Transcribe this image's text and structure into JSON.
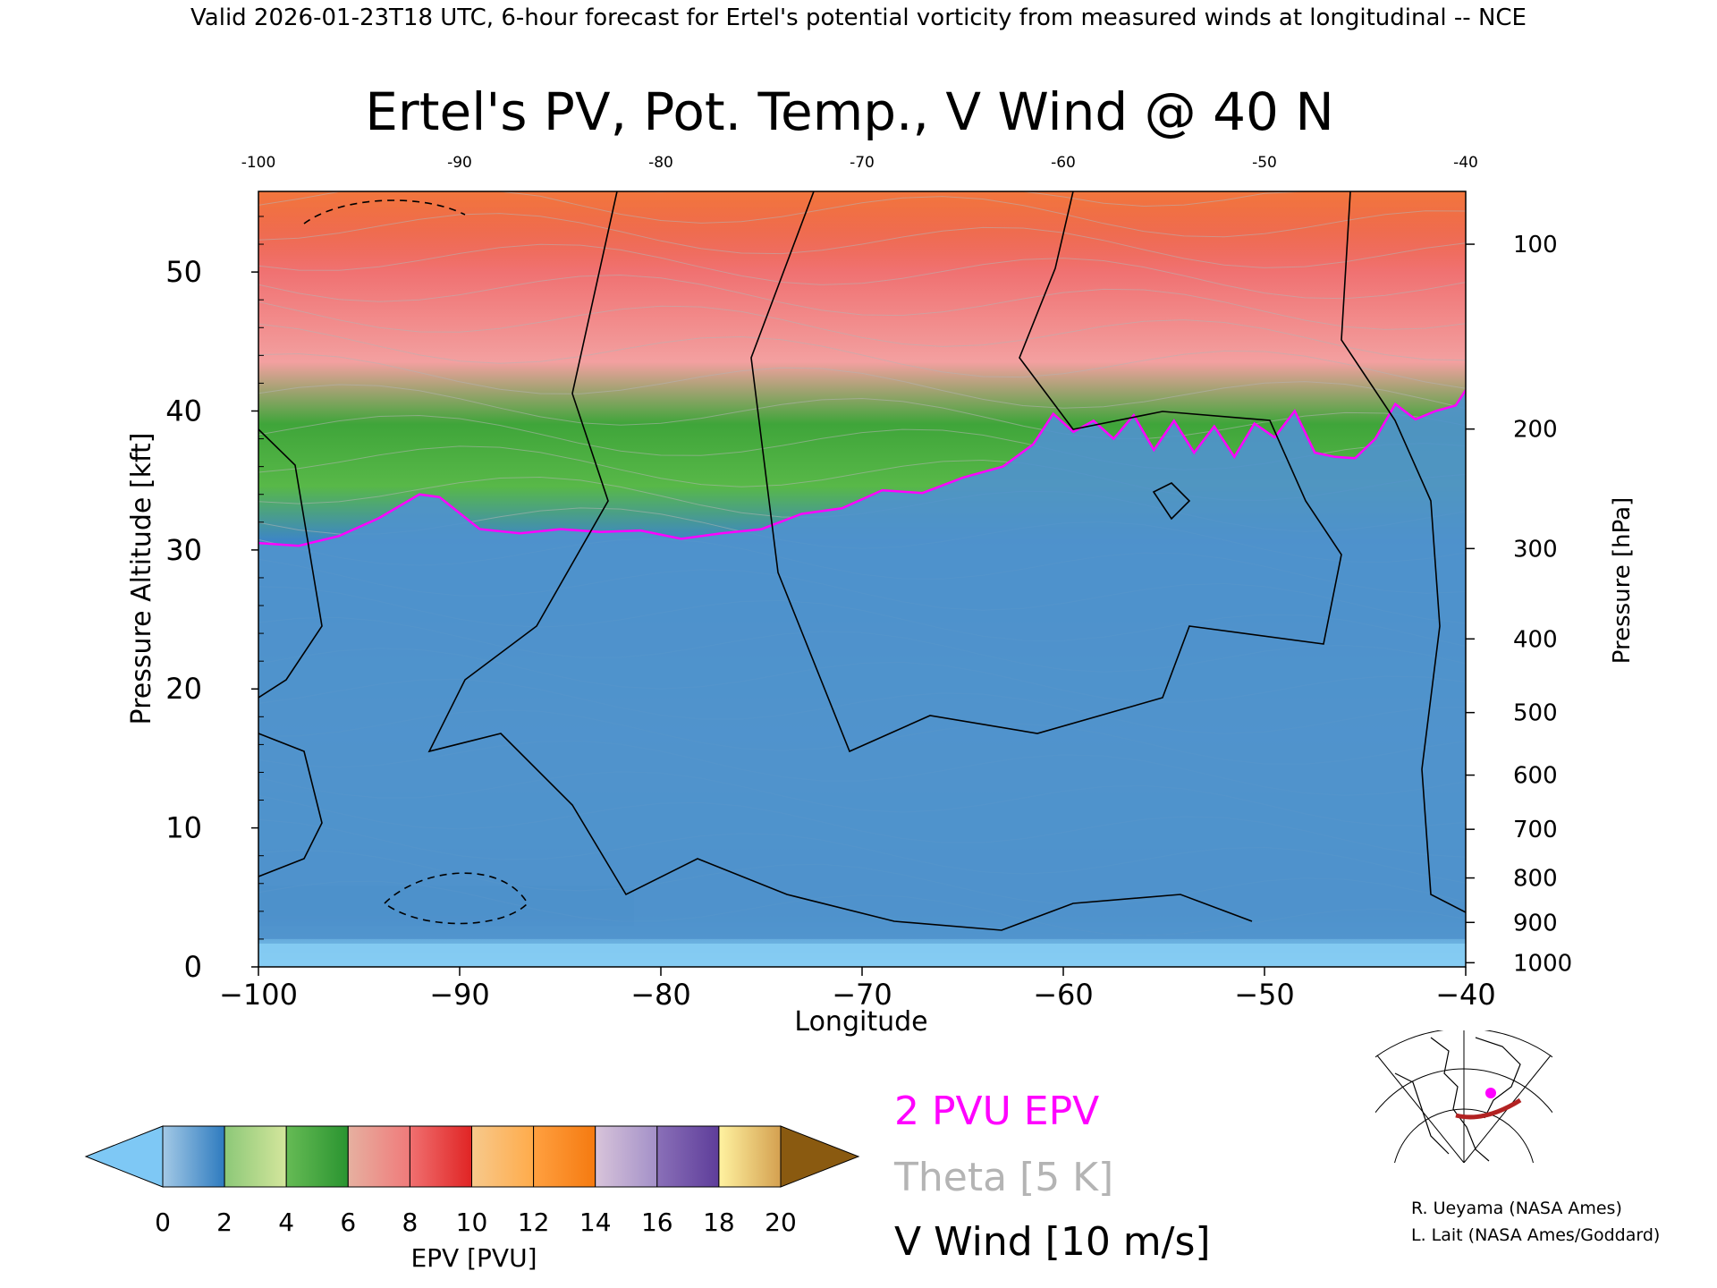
{
  "header": {
    "top_text": "Valid 2026-01-23T18 UTC, 6-hour forecast for Ertel's potential vorticity from measured winds at longitudinal -- NCE"
  },
  "chart_data": {
    "type": "heatmap",
    "title": "Ertel's PV, Pot. Temp., V Wind @ 40 N",
    "xlabel": "Longitude",
    "ylabel_left": "Pressure Altitude [kft]",
    "ylabel_right": "Pressure [hPa]",
    "xlim": [
      -100,
      -40
    ],
    "ylim_kft": [
      0,
      55.8
    ],
    "x_ticks": [
      -100,
      -90,
      -80,
      -70,
      -60,
      -50,
      -40
    ],
    "x_tick_labels": [
      "−100",
      "−90",
      "−80",
      "−70",
      "−60",
      "−50",
      "−40"
    ],
    "top_tick_labels": [
      "-100",
      "-90",
      "-80",
      "-70",
      "-60",
      "-50",
      "-40"
    ],
    "y_ticks_kft": [
      0,
      10,
      20,
      30,
      40,
      50
    ],
    "y_tick_labels": [
      "0",
      "10",
      "20",
      "30",
      "40",
      "50"
    ],
    "pressure_ticks": [
      {
        "hpa": 100,
        "kft": 52.0,
        "label": "100"
      },
      {
        "hpa": 200,
        "kft": 38.7,
        "label": "200"
      },
      {
        "hpa": 300,
        "kft": 30.1,
        "label": "300"
      },
      {
        "hpa": 400,
        "kft": 23.6,
        "label": "400"
      },
      {
        "hpa": 500,
        "kft": 18.3,
        "label": "500"
      },
      {
        "hpa": 600,
        "kft": 13.8,
        "label": "600"
      },
      {
        "hpa": 700,
        "kft": 9.9,
        "label": "700"
      },
      {
        "hpa": 800,
        "kft": 6.4,
        "label": "800"
      },
      {
        "hpa": 900,
        "kft": 3.2,
        "label": "900"
      },
      {
        "hpa": 1000,
        "kft": 0.3,
        "label": "1000"
      }
    ],
    "tropopause_2pvu_kft": [
      [
        -100,
        30.5
      ],
      [
        -98,
        30.3
      ],
      [
        -96,
        31.0
      ],
      [
        -94,
        32.3
      ],
      [
        -92,
        34.0
      ],
      [
        -91,
        33.8
      ],
      [
        -89,
        31.5
      ],
      [
        -87,
        31.2
      ],
      [
        -85,
        31.5
      ],
      [
        -83,
        31.3
      ],
      [
        -81,
        31.4
      ],
      [
        -79,
        30.8
      ],
      [
        -77,
        31.2
      ],
      [
        -75,
        31.5
      ],
      [
        -73,
        32.6
      ],
      [
        -71,
        33.0
      ],
      [
        -69,
        34.3
      ],
      [
        -67,
        34.1
      ],
      [
        -65,
        35.2
      ],
      [
        -63,
        36.0
      ],
      [
        -61.5,
        37.6
      ],
      [
        -60.5,
        39.8
      ],
      [
        -59.5,
        38.5
      ],
      [
        -58.5,
        39.3
      ],
      [
        -57.5,
        38.0
      ],
      [
        -56.5,
        39.7
      ],
      [
        -55.5,
        37.2
      ],
      [
        -54.5,
        39.3
      ],
      [
        -53.5,
        37.0
      ],
      [
        -52.5,
        38.9
      ],
      [
        -51.5,
        36.7
      ],
      [
        -50.5,
        39.1
      ],
      [
        -49.5,
        38.1
      ],
      [
        -48.5,
        40.0
      ],
      [
        -47.5,
        37.0
      ],
      [
        -46.5,
        36.7
      ],
      [
        -45.5,
        36.6
      ],
      [
        -44.5,
        38.0
      ],
      [
        -43.5,
        40.5
      ],
      [
        -42.5,
        39.4
      ],
      [
        -41.5,
        40.0
      ],
      [
        -40.5,
        40.4
      ],
      [
        -40,
        41.5
      ]
    ],
    "colorbar": {
      "label": "EPV [PVU]",
      "ticks": [
        "0",
        "2",
        "4",
        "6",
        "8",
        "10",
        "12",
        "14",
        "16",
        "18",
        "20"
      ],
      "bins": [
        {
          "from": 0,
          "to": 2,
          "colors": [
            "#a3c9e6",
            "#2e7bbf"
          ]
        },
        {
          "from": 2,
          "to": 4,
          "colors": [
            "#8cc878",
            "#d4e69c"
          ]
        },
        {
          "from": 4,
          "to": 6,
          "colors": [
            "#66bb55",
            "#2a9430"
          ]
        },
        {
          "from": 6,
          "to": 8,
          "colors": [
            "#e6b0a0",
            "#f07a7a"
          ]
        },
        {
          "from": 8,
          "to": 10,
          "colors": [
            "#f07070",
            "#e02424"
          ]
        },
        {
          "from": 10,
          "to": 12,
          "colors": [
            "#f7c98c",
            "#ffab4a"
          ]
        },
        {
          "from": 12,
          "to": 14,
          "colors": [
            "#ffa040",
            "#f57a10"
          ]
        },
        {
          "from": 14,
          "to": 16,
          "colors": [
            "#d8c4da",
            "#a390c8"
          ]
        },
        {
          "from": 16,
          "to": 18,
          "colors": [
            "#8a70b8",
            "#5e3d9a"
          ]
        },
        {
          "from": 18,
          "to": 20,
          "colors": [
            "#fff2a0",
            "#d4a050"
          ]
        }
      ],
      "under_color": "#7ec8f5",
      "over_color": "#8a5a10"
    }
  },
  "legend": {
    "pv_label": "2 PVU EPV",
    "pv_color": "#ff00ff",
    "theta_label": "Theta [5 K]",
    "theta_color": "#b4b4b4",
    "wind_label": "V Wind [10 m/s]",
    "wind_color": "#000000"
  },
  "credits": {
    "line1": "R. Ueyama (NASA Ames)",
    "line2": "L. Lait (NASA Ames/Goddard)"
  },
  "inset_map": {
    "marker_color": "#ff00ff",
    "path_color": "#b22222"
  }
}
